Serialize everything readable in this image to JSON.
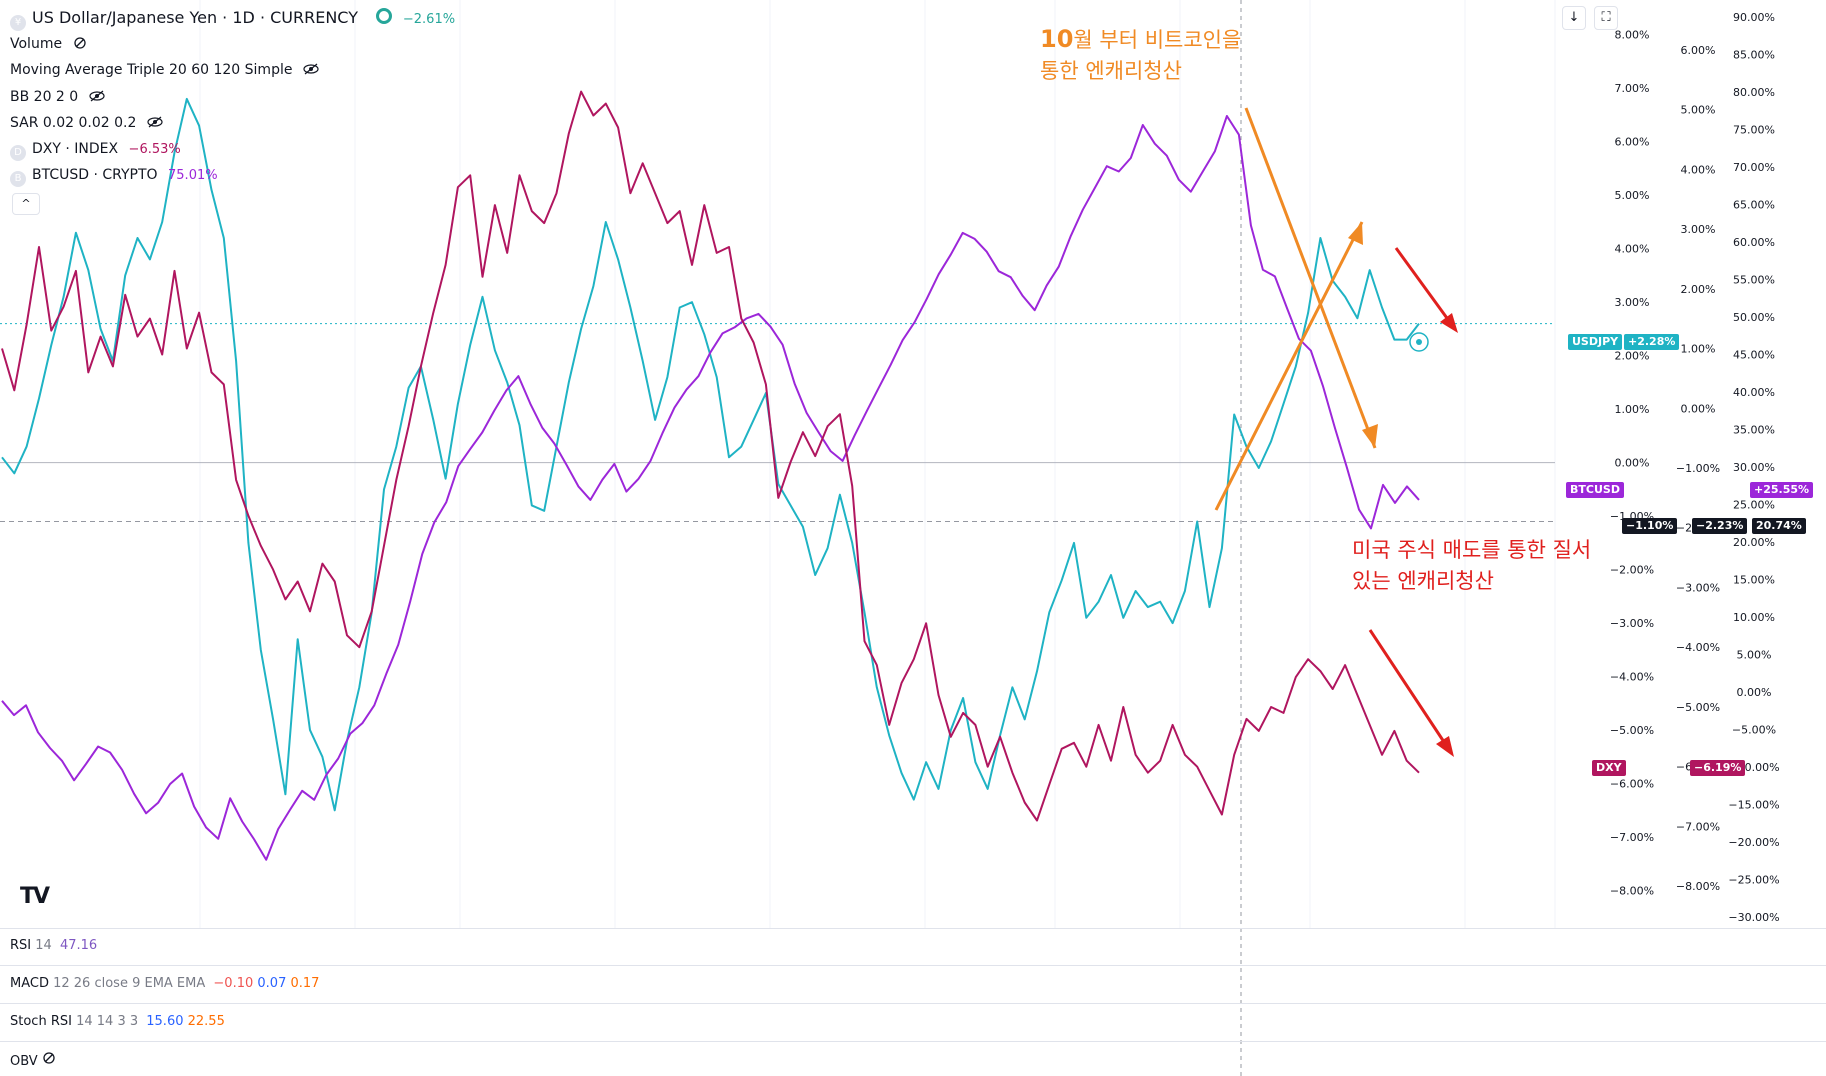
{
  "header": {
    "symbol_title": "US Dollar/Japanese Yen · 1D · CURRENCY",
    "change": "−2.61%",
    "volume_label": "Volume",
    "ma_label": "Moving Average Triple 20 60 120 Simple",
    "bb_label": "BB 20 2 0",
    "sar_label": "SAR 0.02 0.02 0.2",
    "dxy_label": "DXY · INDEX",
    "dxy_change": "−6.53%",
    "btc_label": "BTCUSD · CRYPTO",
    "btc_change": "75.01%",
    "toggle_glyph": "^"
  },
  "annotations": {
    "top_num": "10",
    "top_line1_rest": "월 부터 비트코인을",
    "top_line2": "통한 엔캐리청산",
    "bottom_line1": "미국 주식 매도를 통한 질서",
    "bottom_line2": "있는 엔캐리청산"
  },
  "badges": {
    "usdjpy_name": "USDJPY",
    "usdjpy_value": "+2.28%",
    "btcusd_name": "BTCUSD",
    "btcusd_value": "+25.55%",
    "dxy_name": "DXY",
    "dxy_value": "−6.19%",
    "cross_a": "−1.10%",
    "cross_b": "−2.23%",
    "cross_c": "20.74%"
  },
  "indicators": {
    "rsi_name": "RSI",
    "rsi_params": "14",
    "rsi_value": "47.16",
    "macd_name": "MACD",
    "macd_params": "12 26 close 9 EMA EMA",
    "macd_v1": "−0.10",
    "macd_v2": "0.07",
    "macd_v3": "0.17",
    "stoch_name": "Stoch RSI",
    "stoch_params": "14 14 3 3",
    "stoch_v1": "15.60",
    "stoch_v2": "22.55",
    "obv_name": "OBV"
  },
  "colors": {
    "usdjpy": "#1fb3c4",
    "btcusd": "#9c27d9",
    "dxy": "#b0165f",
    "annotation_orange": "#f08a24",
    "annotation_red": "#e0201e",
    "grid": "#f0f3fa"
  },
  "chart_data": {
    "type": "line",
    "axes": {
      "usdjpy_pct": {
        "ticks": [
          "8.00%",
          "7.00%",
          "6.00%",
          "5.00%",
          "4.00%",
          "3.00%",
          "2.00%",
          "1.00%",
          "0.00%",
          "−1.00%",
          "−2.00%",
          "−3.00%",
          "−4.00%",
          "−5.00%",
          "−6.00%",
          "−7.00%",
          "−8.00%"
        ],
        "range": [
          -8.7,
          8.5
        ]
      },
      "dxy_pct": {
        "ticks": [
          "6.00%",
          "5.00%",
          "4.00%",
          "3.00%",
          "2.00%",
          "1.00%",
          "0.00%",
          "−1.00%",
          "−2.00%",
          "−3.00%",
          "−4.00%",
          "−5.00%",
          "−6.00%",
          "−7.00%",
          "−8.00%"
        ],
        "range": [
          -8.7,
          6.7
        ]
      },
      "btc_pct": {
        "ticks": [
          "90.00%",
          "85.00%",
          "80.00%",
          "75.00%",
          "70.00%",
          "65.00%",
          "60.00%",
          "55.00%",
          "50.00%",
          "45.00%",
          "40.00%",
          "35.00%",
          "30.00%",
          "25.00%",
          "20.00%",
          "15.00%",
          "10.00%",
          "5.00%",
          "0.00%",
          "−5.00%",
          "−10.00%",
          "−15.00%",
          "−20.00%",
          "−25.00%",
          "−30.00%"
        ],
        "range": [
          -31.5,
          91.2
        ]
      }
    },
    "series": [
      {
        "name": "USDJPY",
        "axis": "usdjpy_pct",
        "values": [
          0.1,
          -0.2,
          0.3,
          1.2,
          2.2,
          3.1,
          4.3,
          3.6,
          2.5,
          1.9,
          3.5,
          4.2,
          3.8,
          4.5,
          5.8,
          6.8,
          6.3,
          5.1,
          4.2,
          1.9,
          -1.5,
          -3.5,
          -4.8,
          -6.2,
          -3.3,
          -5.0,
          -5.5,
          -6.5,
          -5.2,
          -4.2,
          -2.8,
          -0.5,
          0.3,
          1.4,
          1.8,
          0.8,
          -0.3,
          1.1,
          2.2,
          3.1,
          2.1,
          1.5,
          0.7,
          -0.8,
          -0.9,
          0.3,
          1.5,
          2.5,
          3.3,
          4.5,
          3.8,
          2.9,
          1.9,
          0.8,
          1.6,
          2.9,
          3.0,
          2.4,
          1.6,
          0.1,
          0.3,
          0.8,
          1.3,
          -0.4,
          -0.8,
          -1.2,
          -2.1,
          -1.6,
          -0.6,
          -1.5,
          -2.8,
          -4.2,
          -5.1,
          -5.8,
          -6.3,
          -5.6,
          -6.1,
          -5.0,
          -4.4,
          -5.6,
          -6.1,
          -5.1,
          -4.2,
          -4.8,
          -3.9,
          -2.8,
          -2.2,
          -1.5,
          -2.9,
          -2.6,
          -2.1,
          -2.9,
          -2.4,
          -2.7,
          -2.6,
          -3.0,
          -2.4,
          -1.1,
          -2.7,
          -1.6,
          0.9,
          0.3,
          -0.1,
          0.4,
          1.1,
          1.8,
          2.8,
          4.2,
          3.4,
          3.1,
          2.7,
          3.6,
          2.9,
          2.3,
          2.3,
          2.6
        ]
      },
      {
        "name": "BTCUSD",
        "axis": "btc_pct",
        "values": [
          -1.2,
          -3.1,
          -1.8,
          -5.4,
          -7.5,
          -9.2,
          -11.8,
          -9.6,
          -7.3,
          -8.1,
          -10.4,
          -13.6,
          -16.2,
          -14.8,
          -12.3,
          -10.9,
          -15.3,
          -18.1,
          -19.6,
          -14.2,
          -17.3,
          -19.7,
          -22.4,
          -18.3,
          -15.7,
          -13.2,
          -14.4,
          -11.1,
          -8.9,
          -5.6,
          -4.2,
          -1.8,
          2.4,
          6.3,
          12.1,
          18.4,
          22.6,
          25.3,
          30.1,
          32.4,
          34.6,
          37.5,
          40.2,
          42.1,
          38.4,
          35.2,
          33.1,
          30.3,
          27.4,
          25.6,
          28.3,
          30.4,
          26.7,
          28.4,
          30.8,
          34.5,
          37.9,
          40.3,
          42.1,
          45.3,
          47.8,
          48.6,
          49.8,
          50.4,
          48.7,
          46.3,
          41.1,
          37.2,
          34.6,
          32.1,
          30.8,
          34.2,
          37.4,
          40.5,
          43.6,
          46.9,
          49.3,
          52.4,
          55.7,
          58.3,
          61.2,
          60.4,
          58.7,
          56.1,
          55.3,
          52.8,
          50.9,
          54.2,
          56.7,
          60.8,
          64.3,
          67.2,
          70.1,
          69.4,
          71.2,
          75.6,
          73.1,
          71.5,
          68.3,
          66.7,
          69.4,
          72.1,
          76.8,
          74.3,
          62.2,
          56.3,
          55.4,
          51.2,
          47.1,
          45.5,
          40.8,
          35.2,
          29.9,
          24.3,
          21.8,
          27.6,
          25.2,
          27.4,
          25.6
        ]
      },
      {
        "name": "DXY",
        "axis": "dxy_pct",
        "values": [
          1.0,
          0.3,
          1.4,
          2.7,
          1.3,
          1.7,
          2.3,
          0.6,
          1.2,
          0.7,
          1.9,
          1.2,
          1.5,
          0.9,
          2.3,
          1.0,
          1.6,
          0.6,
          0.4,
          -1.2,
          -1.8,
          -2.3,
          -2.7,
          -3.2,
          -2.9,
          -3.4,
          -2.6,
          -2.9,
          -3.8,
          -4.0,
          -3.4,
          -2.3,
          -1.2,
          -0.3,
          0.7,
          1.6,
          2.4,
          3.7,
          3.9,
          2.2,
          3.4,
          2.6,
          3.9,
          3.3,
          3.1,
          3.6,
          4.6,
          5.3,
          4.9,
          5.1,
          4.7,
          3.6,
          4.1,
          3.6,
          3.1,
          3.3,
          2.4,
          3.4,
          2.6,
          2.7,
          1.5,
          1.1,
          0.4,
          -1.5,
          -0.9,
          -0.4,
          -0.8,
          -0.3,
          -0.1,
          -1.3,
          -3.9,
          -4.3,
          -5.3,
          -4.6,
          -4.2,
          -3.6,
          -4.8,
          -5.5,
          -5.1,
          -5.3,
          -6.0,
          -5.5,
          -6.1,
          -6.6,
          -6.9,
          -6.3,
          -5.7,
          -5.6,
          -6.0,
          -5.3,
          -5.9,
          -5.0,
          -5.8,
          -6.1,
          -5.9,
          -5.3,
          -5.8,
          -6.0,
          -6.4,
          -6.8,
          -5.8,
          -5.2,
          -5.4,
          -5.0,
          -5.1,
          -4.5,
          -4.2,
          -4.4,
          -4.7,
          -4.3,
          -4.8,
          -5.3,
          -5.8,
          -5.4,
          -5.9,
          -6.1
        ]
      }
    ],
    "reference_line": {
      "axis": "usdjpy_pct",
      "value": 0
    },
    "crosshair_value": {
      "axis": "usdjpy_pct",
      "value": -1.1
    },
    "grid": true,
    "legend": "top-left"
  }
}
